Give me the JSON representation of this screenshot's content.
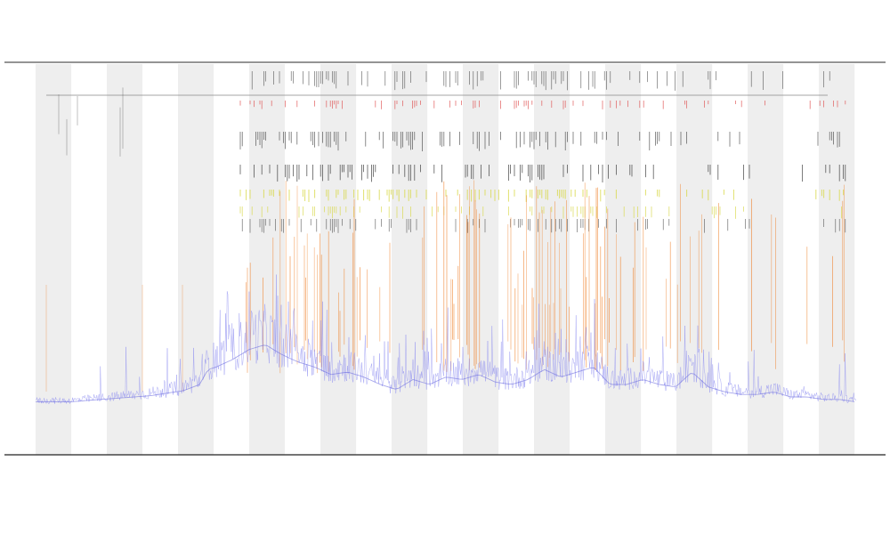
{
  "chart_data": {
    "type": "line",
    "title_lines": [],
    "xlabel": "",
    "ylabel": "",
    "grid": false,
    "legend_placement": "left",
    "legend": [],
    "x_tick_labels": [],
    "band_count": 12,
    "colors": {
      "background_band": "#eeeeee",
      "base_series": "#8c8cf0",
      "orange_series": "#f08a3a",
      "yellow_series": "#d9d94a",
      "red_marks": "#e05050",
      "black_marks": "#333333"
    },
    "series": [
      {
        "role": "base",
        "x": [
          0,
          0.02,
          0.04,
          0.06,
          0.08,
          0.1,
          0.12,
          0.14,
          0.16,
          0.18,
          0.2,
          0.21,
          0.22,
          0.24,
          0.26,
          0.28,
          0.3,
          0.32,
          0.34,
          0.36,
          0.38,
          0.4,
          0.42,
          0.44,
          0.46,
          0.48,
          0.5,
          0.52,
          0.54,
          0.56,
          0.58,
          0.6,
          0.62,
          0.64,
          0.66,
          0.68,
          0.7,
          0.72,
          0.74,
          0.76,
          0.78,
          0.8,
          0.82,
          0.84,
          0.86,
          0.88,
          0.9,
          0.92,
          0.94,
          0.96,
          0.98,
          1.0
        ],
        "values": [
          0.03,
          0.03,
          0.03,
          0.035,
          0.04,
          0.045,
          0.05,
          0.055,
          0.065,
          0.075,
          0.1,
          0.16,
          0.17,
          0.2,
          0.24,
          0.26,
          0.22,
          0.19,
          0.17,
          0.14,
          0.15,
          0.13,
          0.1,
          0.08,
          0.12,
          0.1,
          0.13,
          0.12,
          0.14,
          0.11,
          0.1,
          0.12,
          0.16,
          0.13,
          0.15,
          0.17,
          0.1,
          0.1,
          0.12,
          0.1,
          0.09,
          0.15,
          0.09,
          0.07,
          0.06,
          0.06,
          0.07,
          0.05,
          0.05,
          0.04,
          0.04,
          0.03
        ]
      }
    ],
    "spike_density": [
      0.05,
      0.1,
      0.05,
      0.08,
      0.3,
      0.7,
      0.5,
      0.6,
      0.8,
      0.4,
      0.7,
      0.5,
      0.6,
      0.3,
      0.9,
      0.8,
      0.7,
      0.3,
      0.4,
      0.5,
      0.2,
      0.1,
      0.1,
      0.3
    ]
  }
}
